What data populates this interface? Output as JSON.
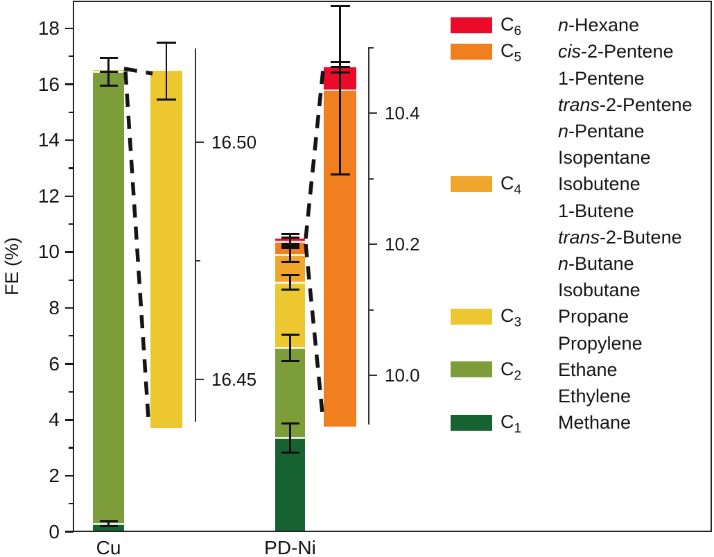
{
  "figure": {
    "background": "#ffffff",
    "text_color": "#151515",
    "frame_color": "#262626"
  },
  "chart_data": {
    "type": "bar",
    "stacked": true,
    "title": "",
    "xlabel": "",
    "ylabel": "FE (%)",
    "ylim": [
      0,
      19
    ],
    "grid": false,
    "legend_position": "right",
    "yticks_major": [
      0,
      2,
      4,
      6,
      8,
      10,
      12,
      14,
      16,
      18
    ],
    "yticks_minor": [
      1,
      3,
      5,
      7,
      9,
      11,
      13,
      15,
      17
    ],
    "categories": [
      "Cu",
      "PD-Ni"
    ],
    "series": [
      {
        "name": "C1",
        "color": "#176231",
        "compounds": [
          "Methane"
        ],
        "values": [
          0.28,
          3.35
        ]
      },
      {
        "name": "C2",
        "color": "#7D9D3B",
        "compounds": [
          "Ethane",
          "Ethylene"
        ],
        "values": [
          16.17,
          3.23
        ]
      },
      {
        "name": "C3",
        "color": "#EDC72F",
        "compounds": [
          "Propane",
          "Propylene"
        ],
        "values": [
          0.07,
          2.33
        ]
      },
      {
        "name": "C4",
        "color": "#EFA62B",
        "compounds": [
          "Isobutene",
          "1-Butene",
          "trans-2-Butene",
          "n-Butane",
          "Isobutane"
        ],
        "values": [
          0.0,
          0.99
        ]
      },
      {
        "name": "C5",
        "color": "#F0801F",
        "compounds": [
          "cis-2-Pentene",
          "1-Pentene",
          "trans-2-Pentene",
          "n-Pentane",
          "Isopentane"
        ],
        "values": [
          0.0,
          0.47
        ]
      },
      {
        "name": "C6",
        "color": "#EB0A28",
        "compounds": [
          "n-Hexane"
        ],
        "values": [
          0.0,
          0.1
        ]
      }
    ],
    "totals": [
      16.52,
      10.47
    ],
    "error_bars": {
      "Cu": [
        {
          "at": 0.28,
          "err": 0.09
        },
        {
          "at": 16.45,
          "err": 0.5,
          "center_line": true
        }
      ],
      "PD-Ni": [
        {
          "at": 3.35,
          "err": 0.52
        },
        {
          "at": 6.58,
          "err": 0.47
        },
        {
          "at": 8.91,
          "err": 0.26
        },
        {
          "at": 9.9,
          "err": 0.25
        },
        {
          "at": 10.37,
          "err": 0.15
        },
        {
          "at": 10.47,
          "err": 0.17
        }
      ]
    },
    "insets": [
      {
        "category": "Cu",
        "axis_tick_labels": [
          "16.50",
          "16.45"
        ],
        "axis_majors": [
          16.5,
          16.45
        ],
        "axis_minors": [
          16.475
        ],
        "segments": [
          {
            "series": "C3",
            "from": 16.43,
            "to": 16.515
          }
        ],
        "errors": [
          {
            "at": 16.515,
            "err": 0.006
          }
        ]
      },
      {
        "category": "PD-Ni",
        "axis_tick_labels": [
          "10.4",
          "10.2",
          "10.0"
        ],
        "axis_majors": [
          10.4,
          10.2,
          10.0
        ],
        "axis_minors": [
          10.5,
          10.3,
          10.1
        ],
        "segments": [
          {
            "series": "C5",
            "from": 9.92,
            "to": 10.435
          },
          {
            "series": "C6",
            "from": 10.435,
            "to": 10.47
          }
        ],
        "errors": [
          {
            "at": 10.435,
            "err": 0.129
          },
          {
            "at": 10.47,
            "err": 0.008,
            "center_line": true
          }
        ]
      }
    ]
  },
  "legend": {
    "rows": [
      {
        "series": "C6",
        "formula": {
          "sym": "C",
          "sub": "6"
        },
        "name": [
          [
            "n",
            true
          ],
          [
            "-Hexane",
            false
          ]
        ]
      },
      {
        "series": "C5",
        "formula": {
          "sym": "C",
          "sub": "5"
        },
        "name": [
          [
            "cis",
            true
          ],
          [
            "-2-Pentene",
            false
          ]
        ]
      },
      {
        "name": [
          [
            "1-Pentene",
            false
          ]
        ]
      },
      {
        "name": [
          [
            "trans",
            true
          ],
          [
            "-2-Pentene",
            false
          ]
        ]
      },
      {
        "name": [
          [
            "n",
            true
          ],
          [
            "-Pentane",
            false
          ]
        ]
      },
      {
        "name": [
          [
            "Isopentane",
            false
          ]
        ]
      },
      {
        "series": "C4",
        "formula": {
          "sym": "C",
          "sub": "4"
        },
        "name": [
          [
            "Isobutene",
            false
          ]
        ]
      },
      {
        "name": [
          [
            "1-Butene",
            false
          ]
        ]
      },
      {
        "name": [
          [
            "trans",
            true
          ],
          [
            "-2-Butene",
            false
          ]
        ]
      },
      {
        "name": [
          [
            "n",
            true
          ],
          [
            "-Butane",
            false
          ]
        ]
      },
      {
        "name": [
          [
            "Isobutane",
            false
          ]
        ]
      },
      {
        "series": "C3",
        "formula": {
          "sym": "C",
          "sub": "3"
        },
        "name": [
          [
            "Propane",
            false
          ]
        ]
      },
      {
        "name": [
          [
            "Propylene",
            false
          ]
        ]
      },
      {
        "series": "C2",
        "formula": {
          "sym": "C",
          "sub": "2"
        },
        "name": [
          [
            "Ethane",
            false
          ]
        ]
      },
      {
        "name": [
          [
            "Ethylene",
            false
          ]
        ]
      },
      {
        "series": "C1",
        "formula": {
          "sym": "C",
          "sub": "1"
        },
        "name": [
          [
            "Methane",
            false
          ]
        ]
      }
    ]
  }
}
